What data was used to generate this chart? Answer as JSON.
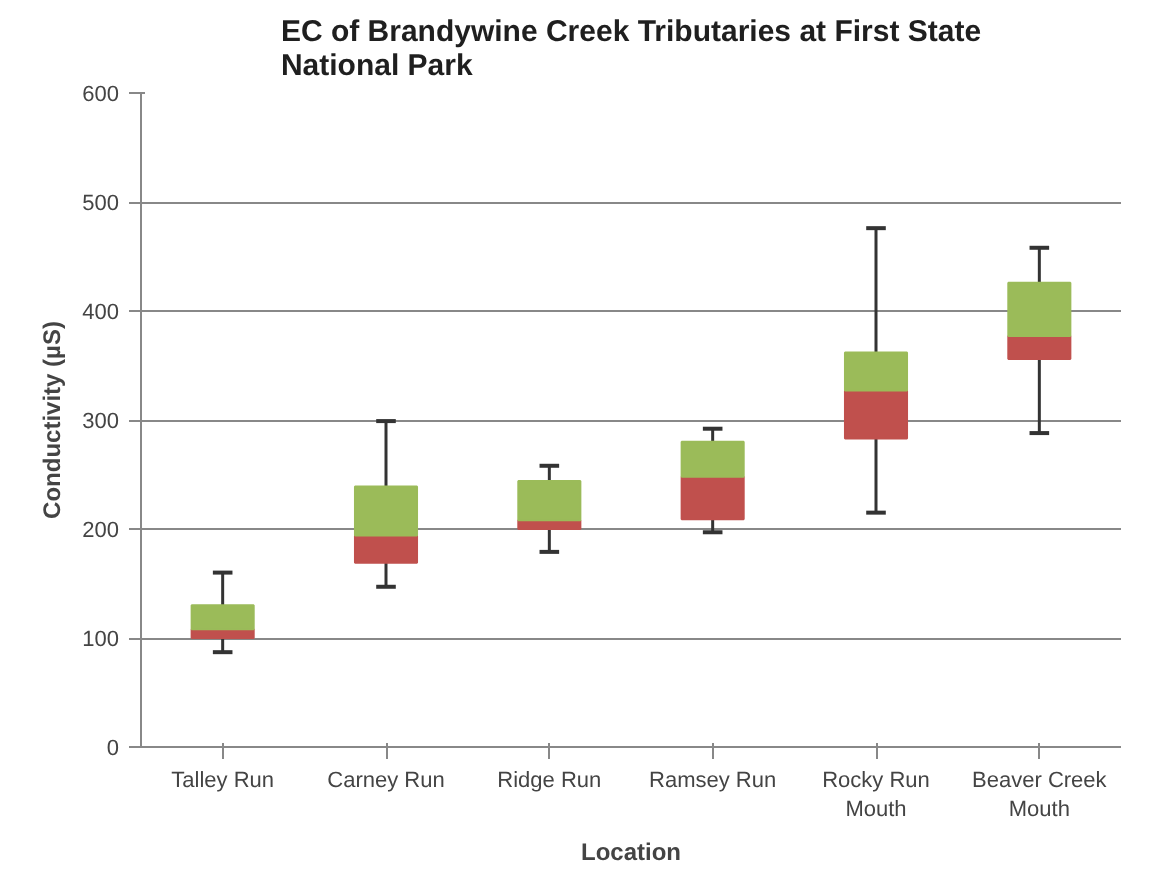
{
  "chart_data": {
    "type": "box",
    "title": "EC of Brandywine Creek Tributaries at First State National Park",
    "xlabel": "Location",
    "ylabel": "Conductivity (µS)",
    "categories": [
      "Talley Run",
      "Carney Run",
      "Ridge Run",
      "Ramsey Run",
      "Rocky Run Mouth",
      "Beaver Creek Mouth"
    ],
    "boxes": [
      {
        "low": 87,
        "q1": 100,
        "median": 108,
        "q3": 130,
        "high": 160
      },
      {
        "low": 147,
        "q1": 169,
        "median": 194,
        "q3": 239,
        "high": 299
      },
      {
        "low": 179,
        "q1": 200,
        "median": 208,
        "q3": 244,
        "high": 258
      },
      {
        "low": 197,
        "q1": 209,
        "median": 248,
        "q3": 280,
        "high": 292
      },
      {
        "low": 215,
        "q1": 283,
        "median": 327,
        "q3": 362,
        "high": 476
      },
      {
        "low": 288,
        "q1": 356,
        "median": 377,
        "q3": 426,
        "high": 458
      }
    ],
    "colors": [
      [
        "#c0504d",
        "#9bbb59"
      ],
      [
        "#c0504d",
        "#9bbb59"
      ],
      [
        "#c0504d",
        "#9bbb59"
      ],
      [
        "#c0504d",
        "#9bbb59"
      ],
      [
        "#c0504d",
        "#9bbb59"
      ],
      [
        "#c0504d",
        "#9bbb59"
      ]
    ],
    "ylim": [
      0,
      600
    ],
    "yticks": [
      0,
      100,
      200,
      300,
      400,
      500,
      600
    ],
    "grid": "y"
  }
}
